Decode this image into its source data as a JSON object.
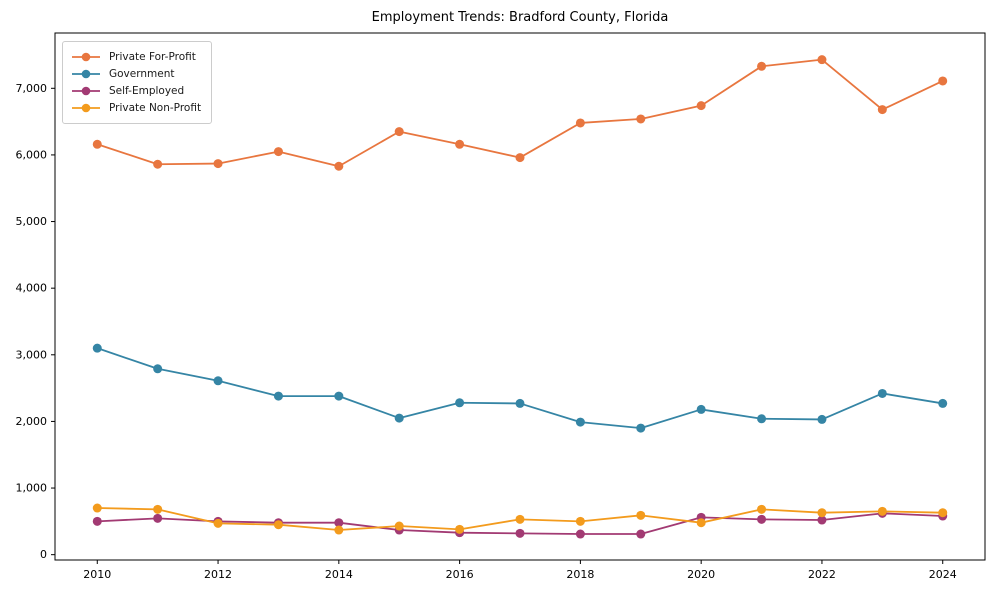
{
  "chart_data": {
    "type": "line",
    "title": "Employment Trends: Bradford County, Florida",
    "xlabel": "",
    "ylabel": "",
    "x": [
      2010,
      2011,
      2012,
      2013,
      2014,
      2015,
      2016,
      2017,
      2018,
      2019,
      2020,
      2021,
      2022,
      2023,
      2024
    ],
    "series": [
      {
        "name": "Private For-Profit",
        "color": "#e8763f",
        "values": [
          6160,
          5860,
          5870,
          6050,
          5830,
          6350,
          6160,
          5960,
          6480,
          6540,
          6740,
          7330,
          7430,
          6680,
          7110
        ]
      },
      {
        "name": "Government",
        "color": "#3585a5",
        "values": [
          3100,
          2790,
          2610,
          2380,
          2380,
          2050,
          2280,
          2270,
          1990,
          1900,
          2180,
          2040,
          2030,
          2420,
          2270
        ]
      },
      {
        "name": "Self-Employed",
        "color": "#a23a73",
        "values": [
          500,
          545,
          500,
          480,
          480,
          370,
          330,
          320,
          310,
          310,
          560,
          530,
          520,
          620,
          580
        ]
      },
      {
        "name": "Private Non-Profit",
        "color": "#f39b1d",
        "values": [
          700,
          680,
          470,
          450,
          370,
          430,
          380,
          530,
          500,
          590,
          480,
          680,
          630,
          650,
          630
        ]
      }
    ],
    "xticks": {
      "values": [
        2010,
        2012,
        2014,
        2016,
        2018,
        2020,
        2022,
        2024
      ],
      "labels": [
        "2010",
        "2012",
        "2014",
        "2016",
        "2018",
        "2020",
        "2022",
        "2024"
      ]
    },
    "yticks": {
      "values": [
        0,
        1000,
        2000,
        3000,
        4000,
        5000,
        6000,
        7000
      ],
      "labels": [
        "0",
        "1,000",
        "2,000",
        "3,000",
        "4,000",
        "5,000",
        "6,000",
        "7,000"
      ]
    },
    "xlim": [
      2009.3,
      2024.7
    ],
    "ylim": [
      -80,
      7830
    ],
    "grid": false,
    "legend_position": "upper-left",
    "marker": "circle"
  },
  "colors": {
    "background": "#ffffff",
    "axis": "#000000",
    "tick_text": "#000000",
    "legend_border": "#cccccc"
  }
}
